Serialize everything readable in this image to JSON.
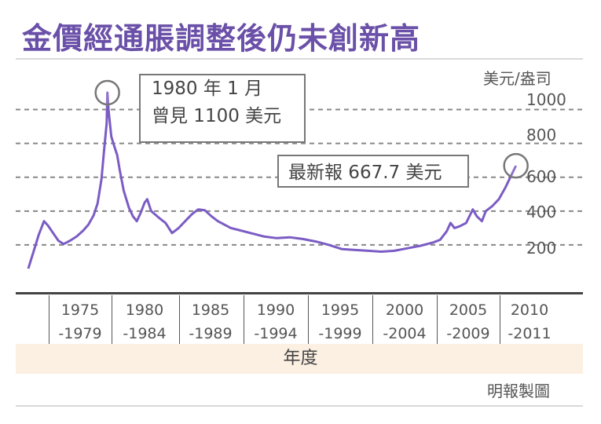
{
  "title": "金價經通脹調整後仍未創新高",
  "source_credit": "明報製圖",
  "colors": {
    "line": "#7b5cc4",
    "title": "#6a50a8",
    "grid": "#888888",
    "band": "#fbf0e2"
  },
  "chart_data": {
    "type": "line",
    "title": "金價經通脹調整後仍未創新高",
    "y_unit_label": "美元/盎司",
    "xlabel": "年度",
    "ylim": [
      0,
      1100
    ],
    "x_range": [
      1974,
      2011.5
    ],
    "y_ticks": [
      200,
      400,
      600,
      800,
      1000
    ],
    "y_tick_labels": [
      "200",
      "400",
      "600",
      "800",
      "1000"
    ],
    "grid": "horizontal dashed",
    "x_groups": [
      {
        "top": "1975",
        "bottom": "-1979"
      },
      {
        "top": "1980",
        "bottom": "-1984"
      },
      {
        "top": "1985",
        "bottom": "-1989"
      },
      {
        "top": "1990",
        "bottom": "-1994"
      },
      {
        "top": "1995",
        "bottom": "-1999"
      },
      {
        "top": "2000",
        "bottom": "-2004"
      },
      {
        "top": "2005",
        "bottom": "-2009"
      },
      {
        "top": "2010",
        "bottom": "-2011"
      }
    ],
    "series": [
      {
        "x": [
          1974.0,
          1974.4,
          1974.8,
          1975.2,
          1975.5,
          1975.9,
          1976.3,
          1976.7,
          1977.2,
          1977.7,
          1978.2,
          1978.6,
          1979.0,
          1979.3,
          1979.6,
          1979.8,
          1980.0,
          1980.05,
          1980.15,
          1980.35,
          1980.55,
          1980.8,
          1981.0,
          1981.3,
          1981.7,
          1982.0,
          1982.3,
          1982.6,
          1982.9,
          1983.1,
          1983.4,
          1983.7,
          1984.0,
          1984.5,
          1985.0,
          1985.5,
          1986.0,
          1986.5,
          1987.0,
          1987.5,
          1988.0,
          1988.5,
          1989.0,
          1989.5,
          1990.0,
          1991.0,
          1992.0,
          1993.0,
          1994.0,
          1995.0,
          1996.0,
          1997.0,
          1998.0,
          1999.0,
          2000.0,
          2001.0,
          2002.0,
          2003.0,
          2004.0,
          2005.0,
          2005.5,
          2006.0,
          2006.3,
          2006.6,
          2007.0,
          2007.5,
          2008.0,
          2008.3,
          2008.7,
          2009.0,
          2009.5,
          2010.0,
          2010.5,
          2011.0,
          2011.3
        ],
        "y": [
          60,
          160,
          260,
          340,
          315,
          270,
          225,
          205,
          225,
          250,
          285,
          320,
          375,
          445,
          590,
          760,
          920,
          1100,
          990,
          840,
          790,
          730,
          640,
          520,
          420,
          370,
          340,
          390,
          450,
          470,
          400,
          380,
          360,
          330,
          270,
          300,
          340,
          380,
          410,
          405,
          370,
          340,
          320,
          300,
          290,
          270,
          250,
          240,
          245,
          235,
          220,
          200,
          175,
          170,
          165,
          160,
          165,
          180,
          195,
          215,
          230,
          280,
          330,
          300,
          310,
          330,
          410,
          370,
          340,
          400,
          430,
          470,
          540,
          620,
          667.7
        ]
      }
    ],
    "annotations": [
      {
        "x": 1980.05,
        "y": 1100,
        "lines": [
          "1980 年 1 月",
          "曾見 1100 美元"
        ]
      },
      {
        "x": 2011.3,
        "y": 667.7,
        "lines": [
          "最新報 667.7 美元"
        ]
      }
    ]
  }
}
